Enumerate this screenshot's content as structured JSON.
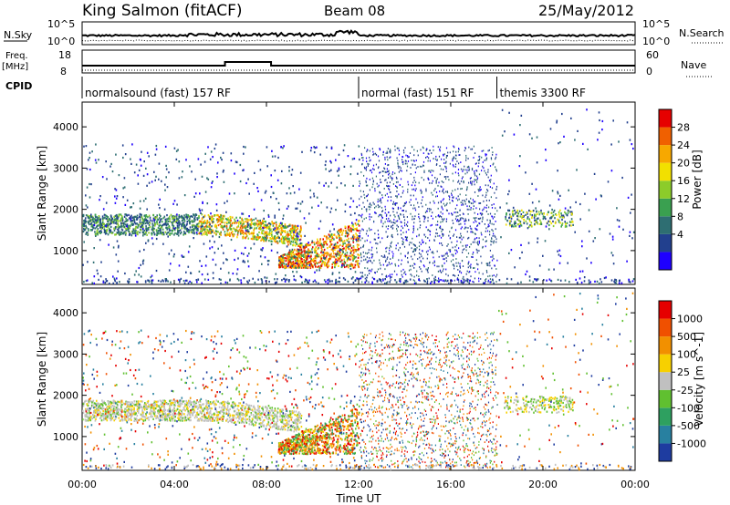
{
  "header": {
    "station": "King Salmon (fitACF)",
    "beam": "Beam 08",
    "date": "25/May/2012"
  },
  "top_panels": {
    "nsky_label": "N.Sky",
    "nsky_ticks": [
      "10^5",
      "10^0"
    ],
    "nsearch_label": "N.Search",
    "nsearch_ticks": [
      "10^5",
      "10^0"
    ],
    "freq_label": "Freq.",
    "freq_unit": "[MHz]",
    "freq_ticks": [
      "18",
      "8"
    ],
    "nave_label": "Nave",
    "nave_ticks": [
      "60",
      "0"
    ],
    "cpid_label": "CPID",
    "cpid_segments": [
      {
        "label": "normalsound (fast) 157 RF",
        "start_h": 0,
        "end_h": 12
      },
      {
        "label": "normal (fast) 151 RF",
        "start_h": 12,
        "end_h": 18
      },
      {
        "label": "themis 3300 RF",
        "start_h": 18,
        "end_h": 24
      }
    ]
  },
  "chart_data": [
    {
      "type": "heatmap",
      "title": "",
      "xlabel": "",
      "ylabel": "Slant Range [km]",
      "xlim": [
        0,
        24
      ],
      "ylim": [
        180,
        4600
      ],
      "yticks": [
        1000,
        2000,
        3000,
        4000
      ],
      "colorbar": {
        "label": "Power [dB]",
        "ticks": [
          "28",
          "24",
          "20",
          "16",
          "12",
          "8",
          "4"
        ],
        "colors": [
          "#1e00ff",
          "#22408e",
          "#2e6e72",
          "#3aa050",
          "#8ccc2a",
          "#f2e000",
          "#f7a800",
          "#f06000",
          "#e60000"
        ]
      }
    },
    {
      "type": "heatmap",
      "title": "",
      "xlabel": "Time UT",
      "ylabel": "Slant Range [km]",
      "xlim": [
        0,
        24
      ],
      "ylim": [
        180,
        4600
      ],
      "yticks": [
        1000,
        2000,
        3000,
        4000
      ],
      "xticks": [
        "00:00",
        "04:00",
        "08:00",
        "12:00",
        "16:00",
        "20:00",
        "00:00"
      ],
      "colorbar": {
        "label": "Velocity [m s^-1]",
        "ticks": [
          "1000",
          "500",
          "100",
          "25",
          "-25",
          "-100",
          "-500",
          "-1000"
        ],
        "colors": [
          "#1e3ca0",
          "#2880a0",
          "#2ea060",
          "#60c030",
          "#c0c0c0",
          "#f7d000",
          "#f29000",
          "#f05000",
          "#e60000"
        ]
      }
    }
  ]
}
